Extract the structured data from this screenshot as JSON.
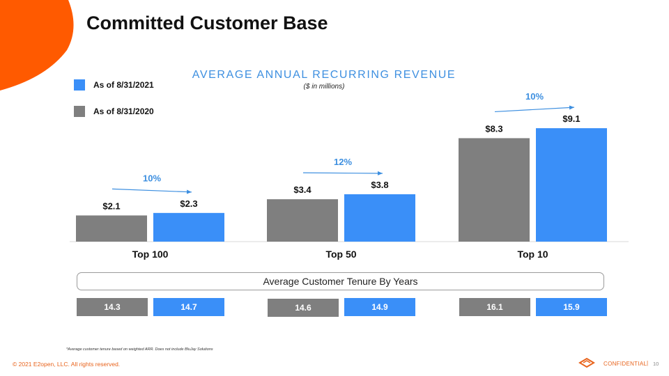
{
  "slide": {
    "title": "Committed Customer Base",
    "footnote": "*Average customer tenure based on weighted ARR. Does not include BluJay Solutions",
    "copyright": "© 2021 E2open, LLC. All rights reserved.",
    "confidential": "CONFIDENTIAL",
    "separator": "|",
    "page_number": "10"
  },
  "colors": {
    "accent_orange": "#ff5a00",
    "series_2021": "#3a8ff8",
    "series_2020": "#7f7f7f",
    "growth_blue": "#3d8fe0"
  },
  "chart_data": {
    "type": "bar",
    "title": "AVERAGE ANNUAL RECURRING REVENUE",
    "subtitle": "($ in millions)",
    "categories": [
      "Top 100",
      "Top 50",
      "Top 10"
    ],
    "series": [
      {
        "name": "As of 8/31/2020",
        "values": [
          2.1,
          3.4,
          8.3
        ],
        "labels": [
          "$2.1",
          "$3.4",
          "$8.3"
        ]
      },
      {
        "name": "As of 8/31/2021",
        "values": [
          2.3,
          3.8,
          9.1
        ],
        "labels": [
          "$2.3",
          "$3.8",
          "$9.1"
        ]
      }
    ],
    "growth_labels": [
      "10%",
      "12%",
      "10%"
    ],
    "legend": [
      {
        "name": "As of 8/31/2021",
        "color": "#3a8ff8"
      },
      {
        "name": "As of 8/31/2020",
        "color": "#7f7f7f"
      }
    ],
    "ylim": [
      0,
      9.1
    ]
  },
  "tenure": {
    "label": "Average Customer Tenure By Years",
    "values_2020": [
      "14.3",
      "14.6",
      "16.1"
    ],
    "values_2021": [
      "14.7",
      "14.9",
      "15.9"
    ]
  }
}
